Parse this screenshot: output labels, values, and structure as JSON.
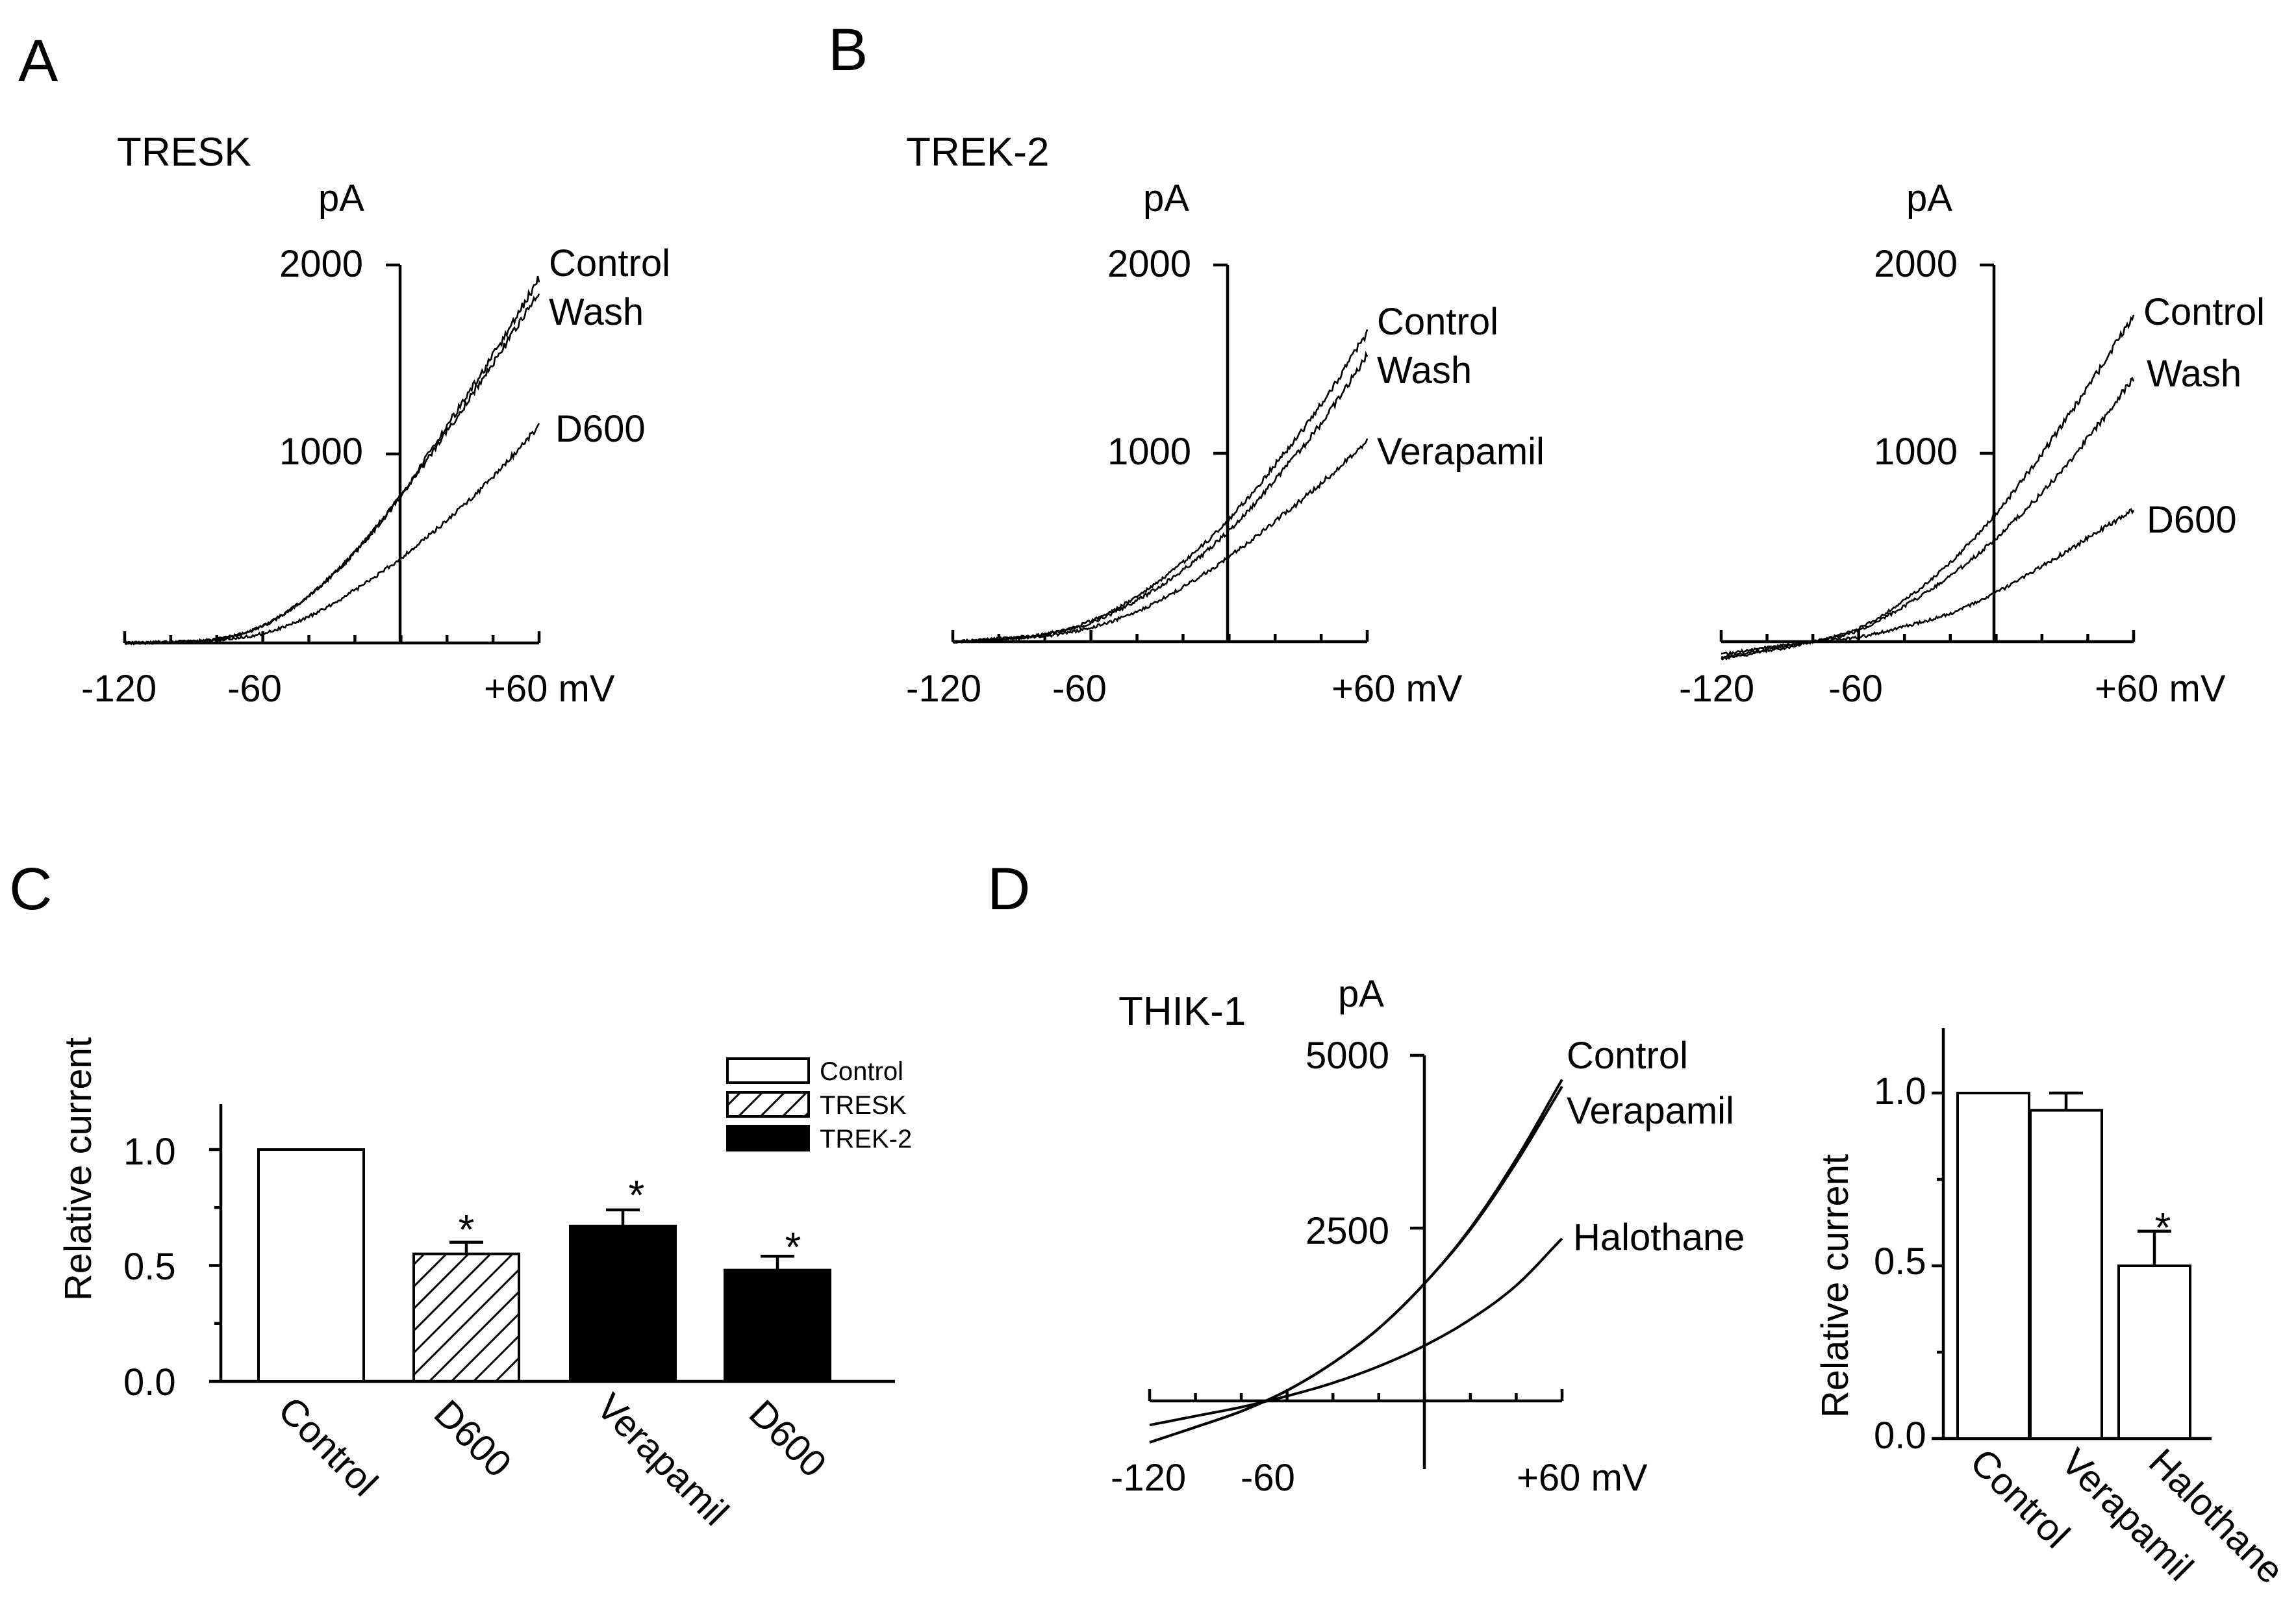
{
  "chart_data": [
    {
      "id": "A",
      "type": "line",
      "panel_label": "A",
      "title": "TRESK",
      "ylabel": "pA",
      "xlabel_unit": "mV",
      "xlim": [
        -120,
        60
      ],
      "ylim": [
        -50,
        2000
      ],
      "xticks": [
        -120,
        -60,
        60
      ],
      "xtick_labels": [
        "-120",
        "-60",
        "+60 mV"
      ],
      "yticks": [
        1000,
        2000
      ],
      "ytick_labels": [
        "1000",
        "2000"
      ],
      "series": [
        {
          "name": "Control",
          "x": [
            -120,
            -100,
            -80,
            -60,
            -40,
            -20,
            0,
            20,
            40,
            60
          ],
          "y": [
            0,
            5,
            20,
            90,
            250,
            480,
            780,
            1150,
            1520,
            1930
          ]
        },
        {
          "name": "Wash",
          "x": [
            -120,
            -100,
            -80,
            -60,
            -40,
            -20,
            0,
            20,
            40,
            60
          ],
          "y": [
            0,
            5,
            20,
            90,
            250,
            480,
            780,
            1120,
            1480,
            1850
          ]
        },
        {
          "name": "D600",
          "x": [
            -120,
            -100,
            -80,
            -60,
            -40,
            -20,
            0,
            20,
            40,
            60
          ],
          "y": [
            0,
            5,
            15,
            50,
            140,
            280,
            450,
            650,
            880,
            1150
          ]
        }
      ]
    },
    {
      "id": "B1",
      "type": "line",
      "panel_label": "B",
      "title": "TREK-2",
      "ylabel": "pA",
      "xlabel_unit": "mV",
      "xlim": [
        -120,
        60
      ],
      "ylim": [
        -50,
        2000
      ],
      "xticks": [
        -120,
        -60,
        60
      ],
      "xtick_labels": [
        "-120",
        "-60",
        "+60 mV"
      ],
      "yticks": [
        1000,
        2000
      ],
      "ytick_labels": [
        "1000",
        "2000"
      ],
      "series": [
        {
          "name": "Control",
          "x": [
            -120,
            -100,
            -80,
            -60,
            -40,
            -20,
            0,
            20,
            40,
            60
          ],
          "y": [
            0,
            15,
            40,
            110,
            240,
            420,
            650,
            940,
            1260,
            1640
          ]
        },
        {
          "name": "Wash",
          "x": [
            -120,
            -100,
            -80,
            -60,
            -40,
            -20,
            0,
            20,
            40,
            60
          ],
          "y": [
            0,
            15,
            40,
            100,
            220,
            380,
            590,
            860,
            1160,
            1520
          ]
        },
        {
          "name": "Verapamil",
          "x": [
            -120,
            -100,
            -80,
            -60,
            -40,
            -20,
            0,
            20,
            40,
            60
          ],
          "y": [
            0,
            12,
            30,
            75,
            160,
            290,
            450,
            640,
            840,
            1070
          ]
        }
      ]
    },
    {
      "id": "B2",
      "type": "line",
      "ylabel": "pA",
      "xlabel_unit": "mV",
      "xlim": [
        -120,
        60
      ],
      "ylim": [
        -150,
        2000
      ],
      "xticks": [
        -120,
        -60,
        60
      ],
      "xtick_labels": [
        "-120",
        "-60",
        "+60 mV"
      ],
      "yticks": [
        1000,
        2000
      ],
      "ytick_labels": [
        "1000",
        "2000"
      ],
      "series": [
        {
          "name": "Control",
          "x": [
            -120,
            -100,
            -80,
            -60,
            -40,
            -20,
            0,
            20,
            40,
            60
          ],
          "y": [
            -80,
            -40,
            0,
            70,
            220,
            420,
            680,
            1000,
            1350,
            1730
          ]
        },
        {
          "name": "Wash",
          "x": [
            -120,
            -100,
            -80,
            -60,
            -40,
            -20,
            0,
            20,
            40,
            60
          ],
          "y": [
            -90,
            -50,
            0,
            60,
            190,
            350,
            550,
            790,
            1080,
            1400
          ]
        },
        {
          "name": "D600",
          "x": [
            -120,
            -100,
            -80,
            -60,
            -40,
            -20,
            0,
            20,
            40,
            60
          ],
          "y": [
            -70,
            -30,
            0,
            25,
            80,
            150,
            260,
            400,
            550,
            700
          ]
        }
      ]
    },
    {
      "id": "C",
      "type": "bar",
      "panel_label": "C",
      "ylabel": "Relative current",
      "ylim": [
        0,
        1.2
      ],
      "yticks": [
        0,
        0.5,
        1.0
      ],
      "ytick_labels": [
        "0.0",
        "0.5",
        "1.0"
      ],
      "categories": [
        "Control",
        "D600",
        "Verapamil",
        "D600"
      ],
      "values": [
        1.0,
        0.55,
        0.67,
        0.48
      ],
      "errors": [
        0,
        0.05,
        0.07,
        0.06
      ],
      "significant": [
        false,
        true,
        true,
        true
      ],
      "fills": [
        "open",
        "hatched",
        "solid",
        "solid"
      ],
      "legend": [
        {
          "name": "Control",
          "fill": "open"
        },
        {
          "name": "TRESK",
          "fill": "hatched"
        },
        {
          "name": "TREK-2",
          "fill": "solid"
        }
      ],
      "star_label": "*"
    },
    {
      "id": "D1",
      "type": "line",
      "panel_label": "D",
      "title": "THIK-1",
      "ylabel": "pA",
      "xlabel_unit": "mV",
      "xlim": [
        -120,
        60
      ],
      "ylim": [
        -500,
        5000
      ],
      "xticks": [
        -120,
        -60,
        60
      ],
      "xtick_labels": [
        "-120",
        "-60",
        "+60 mV"
      ],
      "yticks": [
        2500,
        5000
      ],
      "ytick_labels": [
        "2500",
        "5000"
      ],
      "series": [
        {
          "name": "Control",
          "x": [
            -120,
            -100,
            -80,
            -60,
            -40,
            -20,
            0,
            20,
            40,
            60
          ],
          "y": [
            -600,
            -380,
            -150,
            150,
            550,
            1050,
            1700,
            2500,
            3500,
            4650
          ]
        },
        {
          "name": "Verapamil",
          "x": [
            -120,
            -100,
            -80,
            -60,
            -40,
            -20,
            0,
            20,
            40,
            60
          ],
          "y": [
            -600,
            -380,
            -150,
            150,
            550,
            1050,
            1700,
            2480,
            3450,
            4550
          ]
        },
        {
          "name": "Halothane",
          "x": [
            -120,
            -100,
            -80,
            -60,
            -40,
            -20,
            0,
            20,
            40,
            60
          ],
          "y": [
            -350,
            -220,
            -90,
            70,
            260,
            500,
            800,
            1180,
            1670,
            2350
          ]
        }
      ]
    },
    {
      "id": "D2",
      "type": "bar",
      "ylabel": "Relative current",
      "ylim": [
        0,
        1.2
      ],
      "yticks": [
        0,
        0.5,
        1.0
      ],
      "ytick_labels": [
        "0.0",
        "0.5",
        "1.0"
      ],
      "categories": [
        "Control",
        "Verapamil",
        "Halothane"
      ],
      "values": [
        1.0,
        0.95,
        0.5
      ],
      "errors": [
        0,
        0.05,
        0.1
      ],
      "significant": [
        false,
        false,
        true
      ],
      "fills": [
        "open",
        "open",
        "open"
      ],
      "star_label": "*"
    }
  ]
}
